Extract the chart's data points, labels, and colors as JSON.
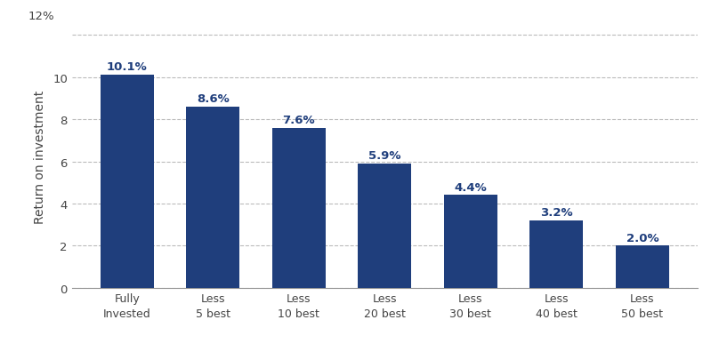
{
  "categories": [
    "Fully\nInvested",
    "Less\n5 best",
    "Less\n10 best",
    "Less\n20 best",
    "Less\n30 best",
    "Less\n40 best",
    "Less\n50 best"
  ],
  "values": [
    10.1,
    8.6,
    7.6,
    5.9,
    4.4,
    3.2,
    2.0
  ],
  "labels": [
    "10.1%",
    "8.6%",
    "7.6%",
    "5.9%",
    "4.4%",
    "3.2%",
    "2.0%"
  ],
  "bar_color": "#1f3e7c",
  "label_color": "#1f3e7c",
  "ylabel": "Return on investment",
  "ylim": [
    0,
    12.5
  ],
  "yticks": [
    0,
    2,
    4,
    6,
    8,
    10
  ],
  "ytick_labels": [
    "0",
    "2",
    "4",
    "6",
    "8",
    "10"
  ],
  "background_color": "#ffffff",
  "grid_color": "#bbbbbb",
  "bar_width": 0.62,
  "label_fontsize": 9.5,
  "ylabel_fontsize": 10,
  "xtick_fontsize": 9.0,
  "ytick_fontsize": 9.5
}
